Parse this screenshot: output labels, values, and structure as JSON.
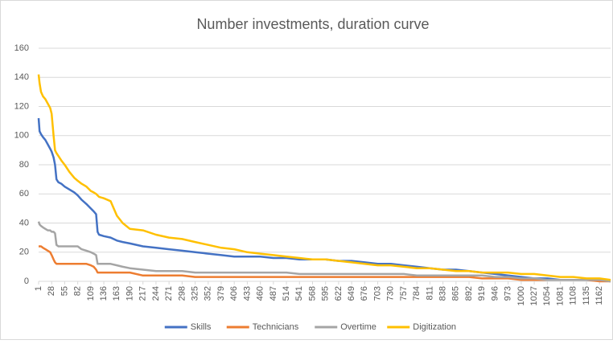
{
  "chart_data": {
    "type": "line",
    "title": "Number investments, duration curve",
    "x": [
      1,
      3,
      6,
      10,
      15,
      20,
      25,
      28,
      32,
      35,
      38,
      42,
      48,
      55,
      65,
      75,
      82,
      90,
      100,
      109,
      115,
      120,
      123,
      126,
      136,
      150,
      163,
      175,
      190,
      217,
      244,
      271,
      298,
      325,
      352,
      379,
      406,
      433,
      460,
      487,
      514,
      541,
      568,
      595,
      622,
      649,
      676,
      703,
      730,
      757,
      784,
      811,
      838,
      865,
      892,
      919,
      946,
      973,
      1000,
      1027,
      1054,
      1081,
      1108,
      1135,
      1162,
      1185
    ],
    "series": [
      {
        "name": "Skills",
        "color": "#4472c4",
        "values": [
          112,
          103,
          101,
          99,
          97,
          94,
          91,
          89,
          85,
          80,
          70,
          68,
          67,
          65,
          63,
          61,
          59,
          56,
          53,
          50,
          48,
          46,
          34,
          32,
          31,
          30,
          28,
          27,
          26,
          24,
          23,
          22,
          21,
          20,
          19,
          18,
          17,
          17,
          17,
          16,
          16,
          15,
          15,
          15,
          14,
          14,
          13,
          12,
          12,
          11,
          10,
          9,
          8,
          8,
          7,
          6,
          5,
          4,
          3,
          2,
          2,
          1,
          1,
          1,
          1,
          0
        ]
      },
      {
        "name": "Technicians",
        "color": "#ed7d31",
        "values": [
          24,
          24,
          24,
          23,
          22,
          21,
          20,
          18,
          15,
          13,
          12,
          12,
          12,
          12,
          12,
          12,
          12,
          12,
          12,
          11,
          10,
          8,
          6,
          6,
          6,
          6,
          6,
          6,
          6,
          4,
          4,
          4,
          4,
          3,
          3,
          3,
          3,
          3,
          3,
          3,
          3,
          3,
          3,
          3,
          3,
          3,
          3,
          3,
          3,
          3,
          3,
          3,
          3,
          3,
          3,
          2,
          2,
          2,
          1,
          1,
          1,
          1,
          1,
          1,
          0,
          0
        ]
      },
      {
        "name": "Overtime",
        "color": "#a5a5a5",
        "values": [
          41,
          39,
          38,
          37,
          36,
          35,
          35,
          34,
          34,
          33,
          25,
          24,
          24,
          24,
          24,
          24,
          24,
          22,
          21,
          20,
          19,
          18,
          12,
          12,
          12,
          12,
          11,
          10,
          9,
          8,
          7,
          7,
          7,
          6,
          6,
          6,
          6,
          6,
          6,
          6,
          6,
          5,
          5,
          5,
          5,
          5,
          5,
          5,
          5,
          5,
          4,
          4,
          4,
          4,
          4,
          4,
          3,
          3,
          2,
          2,
          1,
          1,
          1,
          1,
          1,
          0
        ]
      },
      {
        "name": "Digitization",
        "color": "#ffc000",
        "values": [
          142,
          136,
          130,
          127,
          125,
          122,
          119,
          115,
          100,
          90,
          88,
          86,
          83,
          80,
          75,
          71,
          69,
          67,
          65,
          62,
          61,
          60,
          59,
          58,
          57,
          55,
          45,
          40,
          36,
          35,
          32,
          30,
          29,
          27,
          25,
          23,
          22,
          20,
          19,
          18,
          17,
          16,
          15,
          15,
          14,
          13,
          12,
          11,
          11,
          10,
          9,
          9,
          8,
          7,
          7,
          6,
          6,
          6,
          5,
          5,
          4,
          3,
          3,
          2,
          2,
          1
        ]
      }
    ],
    "xlim": [
      1,
      1185
    ],
    "xticks": [
      1,
      28,
      55,
      82,
      109,
      136,
      163,
      190,
      217,
      244,
      271,
      298,
      325,
      352,
      379,
      406,
      433,
      460,
      487,
      514,
      541,
      568,
      595,
      622,
      649,
      676,
      703,
      730,
      757,
      784,
      811,
      838,
      865,
      892,
      919,
      946,
      973,
      1000,
      1027,
      1054,
      1081,
      1108,
      1135,
      1162
    ],
    "ylim": [
      0,
      160
    ],
    "yticks": [
      0,
      20,
      40,
      60,
      80,
      100,
      120,
      140,
      160
    ],
    "grid": true,
    "legend": "bottom"
  }
}
